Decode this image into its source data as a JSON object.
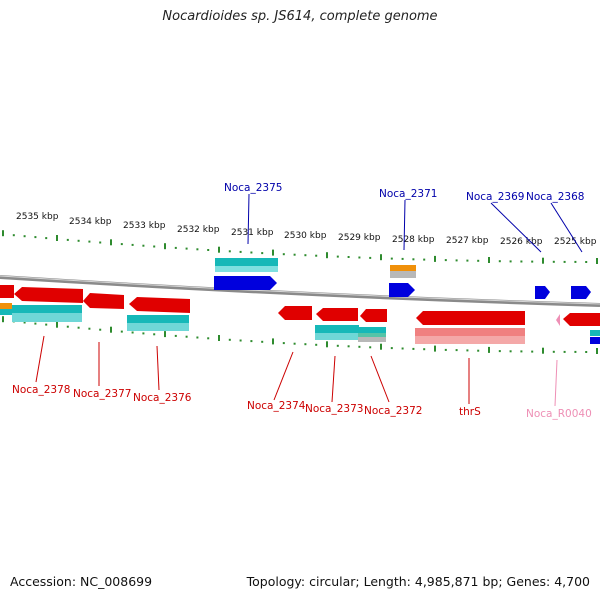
{
  "title": "Nocardioides sp. JS614, complete genome",
  "footer": {
    "accession": "Accession: NC_008699",
    "summary": "Topology: circular; Length: 4,985,871 bp; Genes: 4,700"
  },
  "colors": {
    "backbone": "#8a8a8a",
    "tick": "#2e8b2e",
    "gene_red": "#e00000",
    "gene_blue": "#0000dd",
    "cds_cyan": "#16b8b8",
    "cds_orange": "#f0900a",
    "rna_pink": "#ee8fb5",
    "label_red": "#cc0000",
    "label_blue": "#0000aa",
    "label_pink": "#ee8fb5"
  },
  "map": {
    "top_ticks": [
      "2535 kbp",
      "2534 kbp",
      "2533 kbp",
      "2532 kbp",
      "2531 kbp",
      "2530 kbp",
      "2529 kbp",
      "2528 kbp",
      "2527 kbp",
      "2526 kbp",
      "2525 kbp"
    ],
    "labels_above": [
      "Noca_2375",
      "Noca_2371",
      "Noca_2369",
      "Noca_2368"
    ],
    "labels_below": [
      "Noca_2378",
      "Noca_2377",
      "Noca_2376",
      "Noca_2374",
      "Noca_2373",
      "Noca_2372",
      "thrS",
      "Noca_R0040"
    ]
  }
}
